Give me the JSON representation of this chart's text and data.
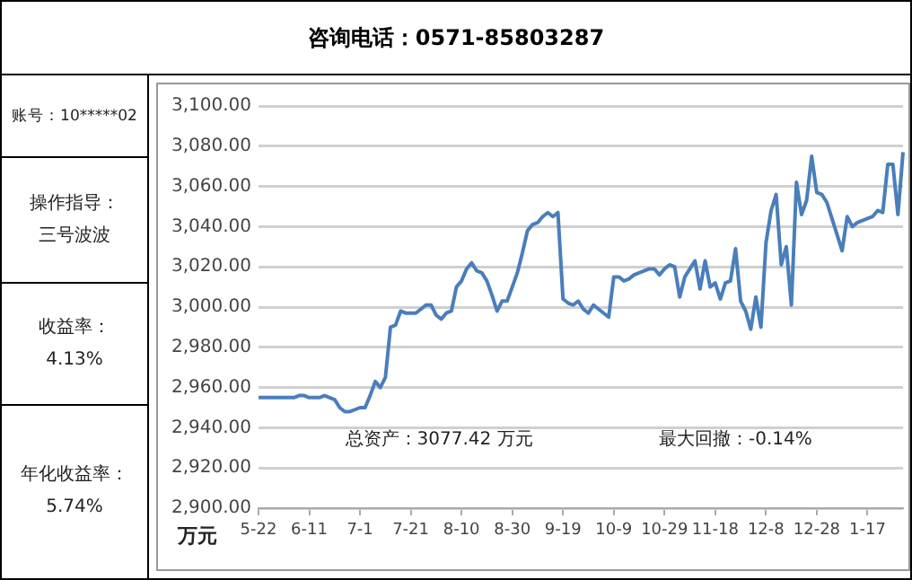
{
  "chart_data": {
    "type": "line",
    "title": "咨询电话：0571-85803287",
    "ylabel": "万元",
    "annotations": [
      "账号：10*****02",
      "操作指导：三号波波",
      "收益率：4.13%",
      "年化收益率：5.74%",
      "总资产：3077.42 万元",
      "最大回撤：-0.14%"
    ],
    "categories": [
      "5-22",
      null,
      null,
      null,
      null,
      null,
      null,
      null,
      null,
      null,
      "6-11",
      null,
      null,
      null,
      null,
      null,
      null,
      null,
      null,
      null,
      "7-1",
      null,
      null,
      null,
      null,
      null,
      null,
      null,
      null,
      null,
      "7-21",
      null,
      null,
      null,
      null,
      null,
      null,
      null,
      null,
      null,
      "8-10",
      null,
      null,
      null,
      null,
      null,
      null,
      null,
      null,
      null,
      "8-30",
      null,
      null,
      null,
      null,
      null,
      null,
      null,
      null,
      null,
      "9-19",
      null,
      null,
      null,
      null,
      null,
      null,
      null,
      null,
      null,
      "10-9",
      null,
      null,
      null,
      null,
      null,
      null,
      null,
      null,
      null,
      "10-29",
      null,
      null,
      null,
      null,
      null,
      null,
      null,
      null,
      null,
      "11-18",
      null,
      null,
      null,
      null,
      null,
      null,
      null,
      null,
      null,
      "12-8",
      null,
      null,
      null,
      null,
      null,
      null,
      null,
      null,
      null,
      "12-28",
      null,
      null,
      null,
      null,
      null,
      null,
      null,
      null,
      null,
      "1-17",
      null,
      null,
      null,
      null,
      null,
      null,
      null
    ],
    "series": [
      {
        "color": "#4a7ebb",
        "values": [
          2955,
          2955,
          2955,
          2955,
          2955,
          2955,
          2955,
          2955,
          2956,
          2956,
          2955,
          2955,
          2955,
          2956,
          2955,
          2954,
          2950,
          2948,
          2948,
          2949,
          2950,
          2950,
          2956,
          2963,
          2960,
          2965,
          2990,
          2991,
          2998,
          2997,
          2997,
          2997,
          2999,
          3001,
          3001,
          2996,
          2994,
          2997,
          2998,
          3010,
          3013,
          3019,
          3022,
          3018,
          3017,
          3013,
          3006,
          2998,
          3003,
          3003,
          3010,
          3017,
          3027,
          3038,
          3041,
          3042,
          3045,
          3047,
          3045,
          3047,
          3004,
          3002,
          3001,
          3003,
          2999,
          2997,
          3001,
          2999,
          2997,
          2995,
          3015,
          3015,
          3013,
          3014,
          3016,
          3017,
          3018,
          3019,
          3019,
          3016,
          3019,
          3021,
          3020,
          3005,
          3015,
          3019,
          3023,
          3009,
          3023,
          3010,
          3012,
          3004,
          3012,
          3013,
          3029,
          3003,
          2998,
          2989,
          3005,
          2990,
          3032,
          3048,
          3056,
          3021,
          3030,
          3001,
          3062,
          3046,
          3053,
          3075,
          3057,
          3056,
          3052,
          3044,
          3036,
          3028,
          3045,
          3040,
          3042,
          3043,
          3044,
          3045,
          3048,
          3047,
          3071,
          3071,
          3046,
          3077
        ]
      }
    ],
    "ylim": [
      2900,
      3100
    ],
    "yticks": [
      {
        "value": 2900,
        "label": "2,900.00"
      },
      {
        "value": 2920,
        "label": "2,920.00"
      },
      {
        "value": 2940,
        "label": "2,940.00"
      },
      {
        "value": 2960,
        "label": "2,960.00"
      },
      {
        "value": 2980,
        "label": "2,980.00"
      },
      {
        "value": 3000,
        "label": "3,000.00"
      },
      {
        "value": 3020,
        "label": "3,020.00"
      },
      {
        "value": 3040,
        "label": "3,040.00"
      },
      {
        "value": 3060,
        "label": "3,060.00"
      },
      {
        "value": 3080,
        "label": "3,080.00"
      },
      {
        "value": 3100,
        "label": "3,100.00"
      }
    ],
    "grid": "y",
    "legend": false,
    "marker": "none",
    "line_style": "solid"
  }
}
